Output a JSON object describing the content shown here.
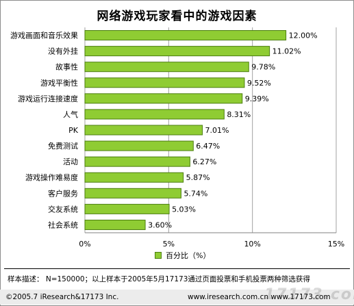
{
  "chart_data": {
    "type": "bar",
    "title": "网络游戏玩家看中的游戏因素",
    "categories": [
      "游戏画面和音乐效果",
      "没有外挂",
      "故事性",
      "游戏平衡性",
      "游戏运行连接速度",
      "人气",
      "PK",
      "免费测试",
      "活动",
      "游戏操作难易度",
      "客户服务",
      "交友系统",
      "社会系统"
    ],
    "values": [
      12.0,
      11.02,
      9.78,
      9.52,
      9.39,
      8.31,
      7.01,
      6.47,
      6.27,
      5.87,
      5.74,
      5.03,
      3.6
    ],
    "value_labels": [
      "12.00%",
      "11.02%",
      "9.78%",
      "9.52%",
      "9.39%",
      "8.31%",
      "7.01%",
      "6.47%",
      "6.27%",
      "5.87%",
      "5.74%",
      "5.03%",
      "3.60%"
    ],
    "xlim": [
      0,
      15
    ],
    "ticks": [
      0,
      5,
      10,
      15
    ],
    "tick_labels": [
      "0%",
      "5%",
      "10%",
      "15%"
    ],
    "legend": {
      "label": "百分比（%）",
      "position": "bottom"
    },
    "orientation": "horizontal",
    "grid": true,
    "bar_color": "#8fcc33",
    "bar_border_color": "#4b7d10"
  },
  "note": "样本描述： N=150000；以上样本于2005年5月17173通过页面投票和手机投票两种筛选获得",
  "footer": {
    "copyright": "©2005.7  iResearch&17173 Inc.",
    "sites": "www.iresearch.com.cn    www.17173.com",
    "watermark": "17173.com"
  }
}
